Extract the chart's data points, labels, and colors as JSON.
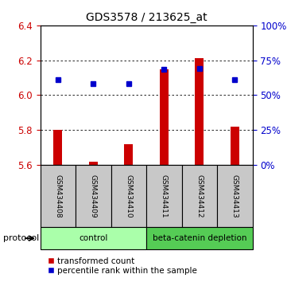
{
  "title": "GDS3578 / 213625_at",
  "samples": [
    "GSM434408",
    "GSM434409",
    "GSM434410",
    "GSM434411",
    "GSM434412",
    "GSM434413"
  ],
  "red_values": [
    5.8,
    5.62,
    5.72,
    6.15,
    6.21,
    5.82
  ],
  "blue_values": [
    6.09,
    6.065,
    6.065,
    6.15,
    6.155,
    6.09
  ],
  "ymin": 5.6,
  "ymax": 6.4,
  "yticks_left": [
    5.6,
    5.8,
    6.0,
    6.2,
    6.4
  ],
  "right_ytick_positions": [
    5.6,
    5.65,
    5.7,
    5.75,
    5.8
  ],
  "right_ytick_labels": [
    "0%",
    "25%",
    "50%",
    "75%",
    "100%"
  ],
  "groups": [
    {
      "label": "control",
      "start": 0,
      "end": 3,
      "color": "#aaffaa"
    },
    {
      "label": "beta-catenin depletion",
      "start": 3,
      "end": 6,
      "color": "#55cc55"
    }
  ],
  "bar_color": "#CC0000",
  "dot_color": "#0000CC",
  "tick_label_color_left": "#CC0000",
  "tick_label_color_right": "#0000CC",
  "legend_items": [
    "transformed count",
    "percentile rank within the sample"
  ],
  "protocol_label": "protocol"
}
